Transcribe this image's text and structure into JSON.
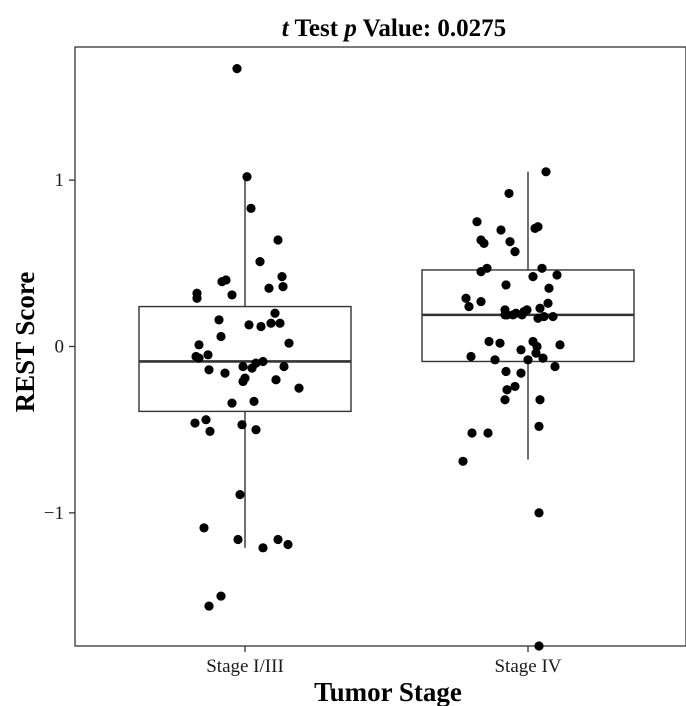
{
  "chart_data": {
    "type": "boxplot",
    "title_italic_1": "t",
    "title_mid": " Test ",
    "title_italic_2": "p",
    "title_end": " Value: 0.0275",
    "xlabel": "Tumor Stage",
    "ylabel": "REST Score",
    "ylim": [
      -1.8,
      1.8
    ],
    "yticks": [
      1,
      0,
      -1
    ],
    "ytick_labels": [
      "1",
      "0",
      "−1"
    ],
    "categories": [
      "Stage I/III",
      "Stage IV"
    ],
    "boxes": [
      {
        "name": "Stage I/III",
        "q1": -0.39,
        "median": -0.09,
        "q3": 0.24,
        "whisker_low": -1.21,
        "whisker_high": 1.04
      },
      {
        "name": "Stage IV",
        "q1": -0.09,
        "median": 0.19,
        "q3": 0.46,
        "whisker_low": -0.68,
        "whisker_high": 1.05
      }
    ],
    "points": [
      [
        [
          -0.08,
          1.67
        ],
        [
          0.02,
          1.02
        ],
        [
          0.06,
          0.83
        ],
        [
          0.33,
          0.64
        ],
        [
          0.15,
          0.51
        ],
        [
          -0.19,
          0.4
        ],
        [
          -0.23,
          0.39
        ],
        [
          0.37,
          0.42
        ],
        [
          0.24,
          0.35
        ],
        [
          0.38,
          0.36
        ],
        [
          -0.48,
          0.32
        ],
        [
          -0.13,
          0.31
        ],
        [
          -0.48,
          0.29
        ],
        [
          0.3,
          0.2
        ],
        [
          0.26,
          0.14
        ],
        [
          0.35,
          0.14
        ],
        [
          -0.26,
          0.16
        ],
        [
          0.16,
          0.12
        ],
        [
          0.04,
          0.13
        ],
        [
          -0.24,
          0.06
        ],
        [
          0.44,
          0.02
        ],
        [
          -0.46,
          0.01
        ],
        [
          -0.49,
          -0.06
        ],
        [
          -0.37,
          -0.05
        ],
        [
          -0.46,
          -0.07
        ],
        [
          0.18,
          -0.09
        ],
        [
          0.11,
          -0.1
        ],
        [
          -0.02,
          -0.12
        ],
        [
          0.07,
          -0.13
        ],
        [
          -0.36,
          -0.14
        ],
        [
          0.39,
          -0.12
        ],
        [
          -0.2,
          -0.16
        ],
        [
          0.0,
          -0.19
        ],
        [
          0.31,
          -0.2
        ],
        [
          -0.02,
          -0.21
        ],
        [
          0.54,
          -0.25
        ],
        [
          0.09,
          -0.33
        ],
        [
          -0.13,
          -0.34
        ],
        [
          -0.5,
          -0.46
        ],
        [
          -0.39,
          -0.44
        ],
        [
          -0.03,
          -0.47
        ],
        [
          0.11,
          -0.5
        ],
        [
          -0.35,
          -0.51
        ],
        [
          -0.05,
          -0.89
        ],
        [
          -0.41,
          -1.09
        ],
        [
          -0.07,
          -1.16
        ],
        [
          0.33,
          -1.16
        ],
        [
          0.43,
          -1.19
        ],
        [
          0.18,
          -1.21
        ],
        [
          -0.24,
          -1.5
        ],
        [
          -0.36,
          -1.56
        ]
      ],
      [
        [
          -0.19,
          0.92
        ],
        [
          0.18,
          1.05
        ],
        [
          -0.51,
          0.75
        ],
        [
          -0.27,
          0.7
        ],
        [
          -0.18,
          0.63
        ],
        [
          -0.47,
          0.64
        ],
        [
          -0.44,
          0.62
        ],
        [
          -0.13,
          0.57
        ],
        [
          0.07,
          0.71
        ],
        [
          0.1,
          0.72
        ],
        [
          -0.41,
          0.47
        ],
        [
          -0.47,
          0.45
        ],
        [
          0.14,
          0.47
        ],
        [
          0.05,
          0.42
        ],
        [
          0.29,
          0.43
        ],
        [
          0.21,
          0.35
        ],
        [
          -0.22,
          0.37
        ],
        [
          -0.62,
          0.29
        ],
        [
          -0.47,
          0.27
        ],
        [
          -0.59,
          0.24
        ],
        [
          -0.23,
          0.22
        ],
        [
          -0.04,
          0.21
        ],
        [
          -0.06,
          0.19
        ],
        [
          0.12,
          0.23
        ],
        [
          -0.12,
          0.2
        ],
        [
          0.2,
          0.26
        ],
        [
          -0.01,
          0.22
        ],
        [
          0.16,
          0.18
        ],
        [
          -0.23,
          0.19
        ],
        [
          -0.15,
          0.19
        ],
        [
          0.25,
          0.18
        ],
        [
          -0.21,
          0.19
        ],
        [
          0.1,
          0.17
        ],
        [
          -0.39,
          0.03
        ],
        [
          -0.28,
          0.02
        ],
        [
          0.05,
          0.03
        ],
        [
          0.09,
          0.0
        ],
        [
          0.32,
          0.01
        ],
        [
          -0.07,
          -0.02
        ],
        [
          0.08,
          -0.04
        ],
        [
          -0.57,
          -0.06
        ],
        [
          0.15,
          -0.07
        ],
        [
          -0.33,
          -0.08
        ],
        [
          0.0,
          -0.08
        ],
        [
          0.27,
          -0.12
        ],
        [
          -0.22,
          -0.15
        ],
        [
          -0.07,
          -0.16
        ],
        [
          -0.13,
          -0.24
        ],
        [
          -0.21,
          -0.26
        ],
        [
          -0.23,
          -0.32
        ],
        [
          0.12,
          -0.32
        ],
        [
          0.11,
          -0.48
        ],
        [
          -0.56,
          -0.52
        ],
        [
          -0.4,
          -0.52
        ],
        [
          -0.65,
          -0.69
        ],
        [
          0.11,
          -1.0
        ],
        [
          0.11,
          -1.8
        ]
      ]
    ],
    "colors": {
      "point": "#000000",
      "box_stroke": "#333333",
      "frame": "#333333",
      "background": "#ffffff"
    }
  }
}
